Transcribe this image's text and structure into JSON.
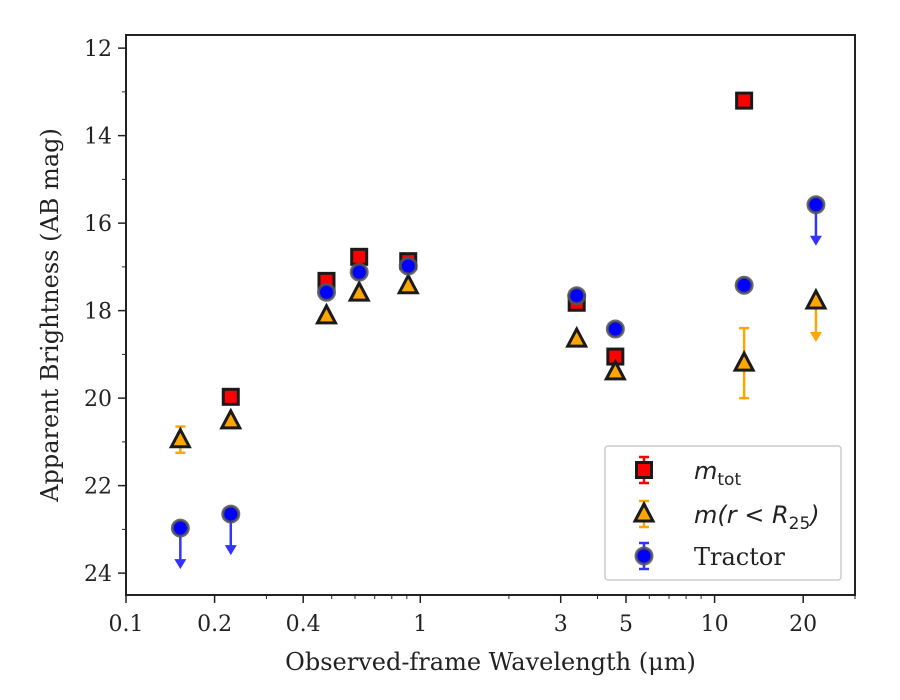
{
  "chart_data": {
    "type": "scatter",
    "xlabel": "Observed-frame Wavelength (μm)",
    "ylabel": "Apparent Brightness (AB mag)",
    "xscale": "log",
    "xlim": [
      0.1,
      30
    ],
    "ylim": [
      24.5,
      11.7
    ],
    "y_inverted": true,
    "x_ticks": [
      0.1,
      0.2,
      0.4,
      1,
      3,
      5,
      10,
      20
    ],
    "x_tick_labels": [
      "0.1",
      "0.2",
      "0.4",
      "1",
      "3",
      "5",
      "10",
      "20"
    ],
    "y_ticks": [
      12,
      14,
      16,
      18,
      20,
      22,
      24
    ],
    "y_tick_labels": [
      "12",
      "14",
      "16",
      "18",
      "20",
      "22",
      "24"
    ],
    "legend_position": "lower-right",
    "series": [
      {
        "name": "m_tot",
        "legend_main": "m",
        "legend_sub": "tot",
        "marker": "square",
        "color": "#ff0000",
        "errcolor": "#ff0000",
        "points": [
          {
            "x": 0.227,
            "y": 19.97
          },
          {
            "x": 0.48,
            "y": 17.32
          },
          {
            "x": 0.62,
            "y": 16.77
          },
          {
            "x": 0.91,
            "y": 16.87
          },
          {
            "x": 3.4,
            "y": 17.82
          },
          {
            "x": 4.6,
            "y": 19.05
          },
          {
            "x": 12.6,
            "y": 13.2
          }
        ]
      },
      {
        "name": "m(r < R25)",
        "legend_main": "m(r < R",
        "legend_sub": "25",
        "legend_end": ")",
        "marker": "triangle",
        "color": "#ffa500",
        "errcolor": "#ffa500",
        "points": [
          {
            "x": 0.153,
            "y": 20.95,
            "err": 0.3
          },
          {
            "x": 0.227,
            "y": 20.52
          },
          {
            "x": 0.48,
            "y": 18.12
          },
          {
            "x": 0.62,
            "y": 17.6
          },
          {
            "x": 0.91,
            "y": 17.43
          },
          {
            "x": 3.4,
            "y": 18.65
          },
          {
            "x": 4.6,
            "y": 19.4
          },
          {
            "x": 12.6,
            "y": 19.2,
            "err": 0.8
          },
          {
            "x": 22.1,
            "y": 17.78,
            "upper_limit": true
          }
        ]
      },
      {
        "name": "Tractor",
        "legend_main": "Tractor",
        "marker": "circle",
        "color": "#0000ff",
        "errcolor": "#3333ff",
        "points": [
          {
            "x": 0.153,
            "y": 22.97,
            "upper_limit": true
          },
          {
            "x": 0.227,
            "y": 22.65,
            "upper_limit": true
          },
          {
            "x": 0.48,
            "y": 17.58
          },
          {
            "x": 0.62,
            "y": 17.12
          },
          {
            "x": 0.91,
            "y": 16.98
          },
          {
            "x": 3.4,
            "y": 17.66
          },
          {
            "x": 4.6,
            "y": 18.42
          },
          {
            "x": 12.6,
            "y": 17.42
          },
          {
            "x": 22.1,
            "y": 15.58,
            "upper_limit": true
          }
        ]
      }
    ]
  }
}
